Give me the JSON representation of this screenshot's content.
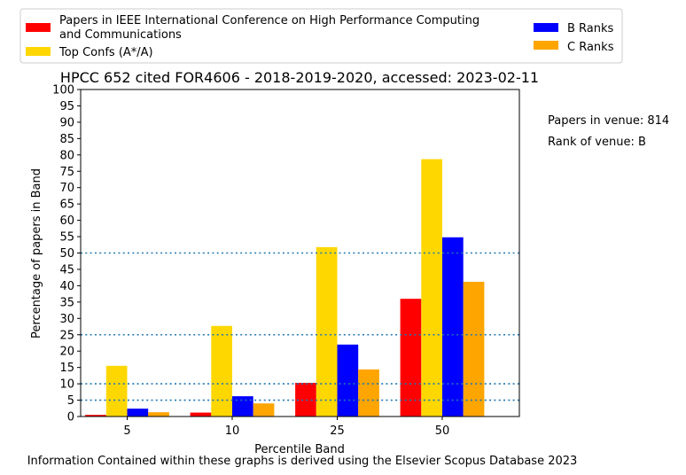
{
  "chart_data": {
    "type": "bar",
    "title": "HPCC 652 cited FOR4606 - 2018-2019-2020, accessed: 2023-02-11",
    "xlabel": "Percentile Band",
    "ylabel": "Percentage of papers in Band",
    "categories": [
      "5",
      "10",
      "25",
      "50"
    ],
    "ylim": [
      0,
      100
    ],
    "yticks": [
      0,
      5,
      10,
      15,
      20,
      25,
      30,
      35,
      40,
      45,
      50,
      55,
      60,
      65,
      70,
      75,
      80,
      85,
      90,
      95,
      100
    ],
    "reference_lines": [
      5,
      10,
      25,
      50
    ],
    "grid": false,
    "legend_position": "top",
    "series": [
      {
        "name": "Papers in IEEE International Conference on High Performance Computing and Communications",
        "color": "#ff0000",
        "values": [
          0.5,
          1.2,
          10.3,
          36.0
        ]
      },
      {
        "name": "Top Confs (A*/A)",
        "color": "#ffd700",
        "values": [
          15.5,
          27.7,
          51.8,
          78.7
        ]
      },
      {
        "name": "B Ranks",
        "color": "#0000ff",
        "values": [
          2.4,
          6.2,
          22.0,
          54.8
        ]
      },
      {
        "name": "C Ranks",
        "color": "#ffa500",
        "values": [
          1.3,
          4.0,
          14.4,
          41.2
        ]
      }
    ]
  },
  "side_info": {
    "papers_in_venue": "Papers in venue: 814",
    "rank_of_venue": "Rank of venue: B"
  },
  "footer": "Information Contained within these graphs is derived using the Elsevier Scopus Database 2023",
  "colors": {
    "reference_line": "#1f77b4"
  }
}
